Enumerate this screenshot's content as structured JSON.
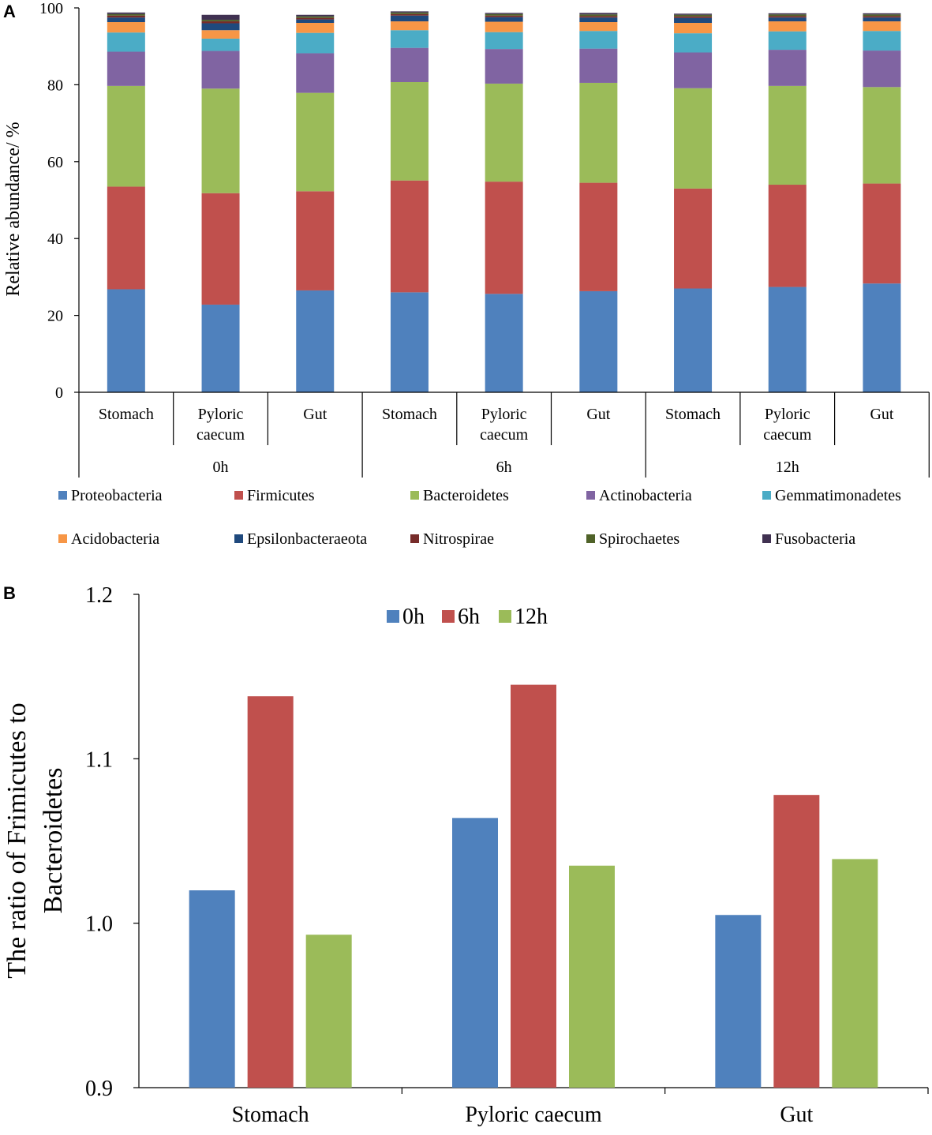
{
  "chart_data": [
    {
      "panel": "A",
      "type": "bar",
      "stacked": true,
      "ylabel": "Relative abundance/ %",
      "ylim": [
        0,
        100
      ],
      "yticks": [
        "0",
        "20",
        "40",
        "60",
        "80",
        "100"
      ],
      "categories": [
        "Stomach",
        "Pyloric caecum",
        "Gut",
        "Stomach",
        "Pyloric caecum",
        "Gut",
        "Stomach",
        "Pyloric caecum",
        "Gut"
      ],
      "category_lines": [
        [
          "Stomach"
        ],
        [
          "Pyloric",
          "caecum"
        ],
        [
          "Gut"
        ],
        [
          "Stomach"
        ],
        [
          "Pyloric",
          "caecum"
        ],
        [
          "Gut"
        ],
        [
          "Stomach"
        ],
        [
          "Pyloric",
          "caecum"
        ],
        [
          "Gut"
        ]
      ],
      "groups": [
        {
          "label": "0h",
          "span": 3
        },
        {
          "label": "6h",
          "span": 3
        },
        {
          "label": "12h",
          "span": 3
        }
      ],
      "series": [
        {
          "name": "Proteobacteria",
          "color": "#4F81BD",
          "values": [
            26.8,
            22.8,
            26.5,
            26.0,
            25.6,
            26.3,
            27.0,
            27.4,
            28.3
          ]
        },
        {
          "name": "Firmicutes",
          "color": "#C0504D",
          "values": [
            26.7,
            29.0,
            25.8,
            29.1,
            29.2,
            28.2,
            26.0,
            26.6,
            26.0
          ]
        },
        {
          "name": "Bacteroidetes",
          "color": "#9BBB59",
          "values": [
            26.2,
            27.2,
            25.6,
            25.6,
            25.5,
            26.0,
            26.1,
            25.7,
            25.1
          ]
        },
        {
          "name": "Actinobacteria",
          "color": "#8064A2",
          "values": [
            8.9,
            9.8,
            10.3,
            8.9,
            9.0,
            8.9,
            9.3,
            9.4,
            9.5
          ]
        },
        {
          "name": "Gemmatimonadetes",
          "color": "#4BACC6",
          "values": [
            5.0,
            3.2,
            5.3,
            4.6,
            4.4,
            4.6,
            5.0,
            4.8,
            5.1
          ]
        },
        {
          "name": "Acidobacteria",
          "color": "#F79646",
          "values": [
            2.7,
            2.2,
            2.6,
            2.3,
            2.7,
            2.3,
            2.7,
            2.6,
            2.5
          ]
        },
        {
          "name": "Epsilonbacteraeota",
          "color": "#1F497D",
          "values": [
            1.2,
            1.8,
            0.9,
            1.5,
            1.2,
            1.2,
            1.3,
            1.0,
            1.0
          ]
        },
        {
          "name": "Nitrospirae",
          "color": "#772C2A",
          "values": [
            0.5,
            0.5,
            0.4,
            0.4,
            0.4,
            0.4,
            0.4,
            0.4,
            0.4
          ]
        },
        {
          "name": "Spirochaetes",
          "color": "#4F6228",
          "values": [
            0.4,
            0.4,
            0.4,
            0.4,
            0.4,
            0.4,
            0.4,
            0.4,
            0.4
          ]
        },
        {
          "name": "Fusobacteria",
          "color": "#403151",
          "values": [
            0.4,
            1.3,
            0.4,
            0.3,
            0.3,
            0.4,
            0.3,
            0.3,
            0.3
          ]
        }
      ]
    },
    {
      "panel": "B",
      "type": "bar",
      "ylabel_lines": [
        "The ratio of Frimicutes to",
        "Bacteroidetes"
      ],
      "ylim": [
        0.9,
        1.2
      ],
      "yticks": [
        "0.9",
        "1.0",
        "1.1",
        "1.2"
      ],
      "categories": [
        "Stomach",
        "Pyloric caecum",
        "Gut"
      ],
      "series": [
        {
          "name": "0h",
          "color": "#4F81BD",
          "values": [
            1.02,
            1.064,
            1.005
          ]
        },
        {
          "name": "6h",
          "color": "#C0504D",
          "values": [
            1.138,
            1.145,
            1.078
          ]
        },
        {
          "name": "12h",
          "color": "#9BBB59",
          "values": [
            0.993,
            1.035,
            1.039
          ]
        }
      ]
    }
  ]
}
